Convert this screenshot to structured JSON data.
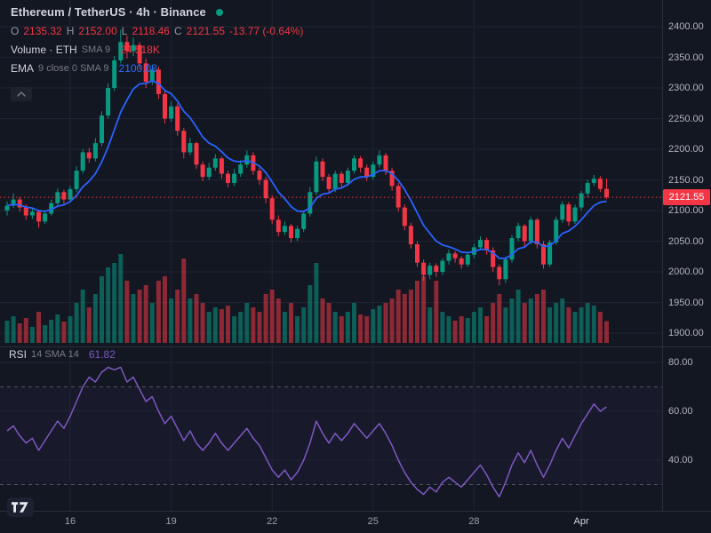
{
  "title": {
    "text": "Ethereum / TetherUS · 4h · Binance"
  },
  "ohlc": {
    "o_label": "O",
    "o": "2135.32",
    "h_label": "H",
    "h": "2152.00",
    "l_label": "L",
    "l": "2118.46",
    "c_label": "C",
    "c": "2121.55",
    "change": "-13.77 (-0.64%)"
  },
  "volume_legend": {
    "name": "Volume · ETH",
    "params": "SMA 9",
    "value": "24.518K"
  },
  "ema_legend": {
    "name": "EMA",
    "params": "9 close 0 SMA 9",
    "value": "2100.08"
  },
  "rsi_legend": {
    "name": "RSI",
    "params": "14 SMA 14",
    "value": "61.82"
  },
  "colors": {
    "background": "#131722",
    "grid": "#1e2433",
    "up": "#089981",
    "down": "#f23645",
    "up_volume": "rgba(8,153,129,0.55)",
    "down_volume": "rgba(242,54,69,0.55)",
    "ema_line": "#2962ff",
    "rsi_line": "#7e57c2",
    "rsi_band_fill": "rgba(126,87,194,0.06)",
    "band_line": "#787b86",
    "axis_text": "#b2b5be",
    "separator": "#2a2e39",
    "last_price_line": "#f23645",
    "badge_bg": "#f23645",
    "status_dot": "#089981"
  },
  "price_axis": {
    "labels": [
      {
        "text": "2400.00",
        "price": 2400
      },
      {
        "text": "2350.00",
        "price": 2350
      },
      {
        "text": "2300.00",
        "price": 2300
      },
      {
        "text": "2250.00",
        "price": 2250
      },
      {
        "text": "2200.00",
        "price": 2200
      },
      {
        "text": "2150.00",
        "price": 2150
      },
      {
        "text": "2100.00",
        "price": 2100
      },
      {
        "text": "2050.00",
        "price": 2050
      },
      {
        "text": "2000.00",
        "price": 2000
      },
      {
        "text": "1950.00",
        "price": 1950
      },
      {
        "text": "1900.00",
        "price": 1900
      }
    ],
    "last_price": 2121.55,
    "last_price_label": "2121.55"
  },
  "rsi_axis": {
    "labels": [
      {
        "text": "80.00",
        "value": 80
      },
      {
        "text": "60.00",
        "value": 60
      },
      {
        "text": "40.00",
        "value": 40
      }
    ],
    "upper_band": 70,
    "lower_band": 30
  },
  "time_axis": {
    "labels": [
      {
        "text": "16",
        "i": 10,
        "bright": false
      },
      {
        "text": "19",
        "i": 26,
        "bright": false
      },
      {
        "text": "22",
        "i": 42,
        "bright": false
      },
      {
        "text": "25",
        "i": 58,
        "bright": false
      },
      {
        "text": "28",
        "i": 74,
        "bright": false
      },
      {
        "text": "Apr",
        "i": 91,
        "bright": true
      }
    ]
  },
  "chart_data": [
    {
      "type": "candlestick",
      "title": "Ethereum / TetherUS",
      "interval": "4h",
      "exchange": "Binance",
      "ylim": [
        1890,
        2410
      ],
      "columns": [
        "open",
        "high",
        "low",
        "close",
        "volume_k"
      ],
      "ema_period": 9,
      "last_price": 2121.55,
      "ohlcv": [
        [
          2100,
          2115,
          2092,
          2108,
          25
        ],
        [
          2108,
          2128,
          2104,
          2118,
          30
        ],
        [
          2118,
          2122,
          2098,
          2105,
          22
        ],
        [
          2105,
          2110,
          2085,
          2092,
          28
        ],
        [
          2092,
          2104,
          2086,
          2098,
          18
        ],
        [
          2098,
          2100,
          2072,
          2082,
          35
        ],
        [
          2082,
          2098,
          2078,
          2095,
          20
        ],
        [
          2095,
          2118,
          2092,
          2112,
          26
        ],
        [
          2112,
          2136,
          2108,
          2130,
          32
        ],
        [
          2130,
          2134,
          2110,
          2118,
          24
        ],
        [
          2118,
          2140,
          2114,
          2135,
          30
        ],
        [
          2135,
          2172,
          2130,
          2165,
          45
        ],
        [
          2165,
          2200,
          2160,
          2195,
          60
        ],
        [
          2195,
          2202,
          2178,
          2185,
          40
        ],
        [
          2185,
          2218,
          2180,
          2210,
          55
        ],
        [
          2210,
          2262,
          2205,
          2255,
          75
        ],
        [
          2255,
          2308,
          2250,
          2300,
          85
        ],
        [
          2300,
          2352,
          2295,
          2345,
          90
        ],
        [
          2345,
          2395,
          2340,
          2375,
          100
        ],
        [
          2375,
          2385,
          2348,
          2360,
          70
        ],
        [
          2360,
          2382,
          2352,
          2370,
          55
        ],
        [
          2370,
          2375,
          2330,
          2340,
          60
        ],
        [
          2340,
          2348,
          2300,
          2310,
          65
        ],
        [
          2310,
          2338,
          2305,
          2330,
          45
        ],
        [
          2330,
          2335,
          2282,
          2290,
          70
        ],
        [
          2290,
          2295,
          2242,
          2250,
          75
        ],
        [
          2250,
          2278,
          2245,
          2270,
          50
        ],
        [
          2270,
          2275,
          2222,
          2230,
          60
        ],
        [
          2230,
          2235,
          2185,
          2195,
          95
        ],
        [
          2195,
          2218,
          2190,
          2210,
          50
        ],
        [
          2210,
          2212,
          2168,
          2175,
          55
        ],
        [
          2175,
          2180,
          2148,
          2155,
          45
        ],
        [
          2155,
          2178,
          2150,
          2170,
          35
        ],
        [
          2170,
          2192,
          2165,
          2185,
          40
        ],
        [
          2185,
          2188,
          2152,
          2160,
          38
        ],
        [
          2160,
          2165,
          2138,
          2145,
          42
        ],
        [
          2145,
          2168,
          2140,
          2160,
          30
        ],
        [
          2160,
          2182,
          2155,
          2175,
          35
        ],
        [
          2175,
          2198,
          2170,
          2190,
          45
        ],
        [
          2190,
          2195,
          2158,
          2165,
          40
        ],
        [
          2165,
          2170,
          2142,
          2150,
          35
        ],
        [
          2150,
          2155,
          2112,
          2120,
          55
        ],
        [
          2120,
          2125,
          2078,
          2085,
          60
        ],
        [
          2085,
          2092,
          2058,
          2065,
          50
        ],
        [
          2065,
          2082,
          2060,
          2075,
          35
        ],
        [
          2075,
          2078,
          2048,
          2055,
          45
        ],
        [
          2055,
          2075,
          2050,
          2070,
          30
        ],
        [
          2070,
          2100,
          2065,
          2095,
          40
        ],
        [
          2095,
          2138,
          2090,
          2130,
          65
        ],
        [
          2130,
          2188,
          2125,
          2180,
          90
        ],
        [
          2180,
          2185,
          2148,
          2155,
          50
        ],
        [
          2155,
          2160,
          2128,
          2135,
          45
        ],
        [
          2135,
          2165,
          2130,
          2160,
          35
        ],
        [
          2160,
          2164,
          2138,
          2145,
          30
        ],
        [
          2145,
          2170,
          2140,
          2165,
          35
        ],
        [
          2165,
          2190,
          2160,
          2185,
          45
        ],
        [
          2185,
          2189,
          2162,
          2170,
          32
        ],
        [
          2170,
          2175,
          2148,
          2155,
          30
        ],
        [
          2155,
          2180,
          2150,
          2175,
          38
        ],
        [
          2175,
          2198,
          2170,
          2190,
          42
        ],
        [
          2190,
          2194,
          2158,
          2165,
          45
        ],
        [
          2165,
          2170,
          2132,
          2140,
          50
        ],
        [
          2140,
          2145,
          2098,
          2105,
          60
        ],
        [
          2105,
          2110,
          2068,
          2075,
          55
        ],
        [
          2075,
          2080,
          2038,
          2045,
          60
        ],
        [
          2045,
          2050,
          2008,
          2015,
          70
        ],
        [
          2015,
          2020,
          1985,
          1995,
          75
        ],
        [
          1995,
          2015,
          1988,
          2010,
          40
        ],
        [
          2010,
          2014,
          1992,
          2000,
          70
        ],
        [
          2000,
          2022,
          1995,
          2018,
          35
        ],
        [
          2018,
          2036,
          2012,
          2030,
          30
        ],
        [
          2030,
          2034,
          2015,
          2022,
          25
        ],
        [
          2022,
          2026,
          2005,
          2012,
          30
        ],
        [
          2012,
          2032,
          2008,
          2028,
          28
        ],
        [
          2028,
          2046,
          2022,
          2040,
          35
        ],
        [
          2040,
          2058,
          2035,
          2052,
          40
        ],
        [
          2052,
          2056,
          2028,
          2035,
          30
        ],
        [
          2035,
          2040,
          2000,
          2008,
          45
        ],
        [
          2008,
          2012,
          1978,
          1988,
          55
        ],
        [
          1988,
          2025,
          1982,
          2020,
          40
        ],
        [
          2020,
          2060,
          2015,
          2055,
          50
        ],
        [
          2055,
          2080,
          2050,
          2075,
          60
        ],
        [
          2075,
          2078,
          2042,
          2050,
          45
        ],
        [
          2050,
          2090,
          2045,
          2085,
          50
        ],
        [
          2085,
          2088,
          2038,
          2045,
          55
        ],
        [
          2045,
          2050,
          2005,
          2012,
          60
        ],
        [
          2012,
          2052,
          2008,
          2048,
          40
        ],
        [
          2048,
          2090,
          2044,
          2085,
          45
        ],
        [
          2085,
          2115,
          2080,
          2110,
          50
        ],
        [
          2110,
          2114,
          2075,
          2082,
          40
        ],
        [
          2082,
          2110,
          2078,
          2105,
          35
        ],
        [
          2105,
          2132,
          2100,
          2128,
          40
        ],
        [
          2128,
          2150,
          2122,
          2145,
          45
        ],
        [
          2145,
          2158,
          2140,
          2152,
          42
        ],
        [
          2152,
          2156,
          2130,
          2135.32,
          35
        ],
        [
          2135.32,
          2152,
          2118.46,
          2121.55,
          24.518
        ]
      ]
    },
    {
      "type": "line",
      "name": "RSI 14",
      "ylim": [
        20,
        88
      ],
      "bands": {
        "upper": 70,
        "lower": 30
      },
      "last_value": 61.82,
      "values": [
        52,
        54,
        50,
        47,
        49,
        44,
        48,
        52,
        56,
        53,
        58,
        64,
        70,
        74,
        72,
        76,
        78,
        77,
        78,
        72,
        74,
        69,
        64,
        66,
        60,
        55,
        58,
        53,
        48,
        52,
        47,
        44,
        47,
        51,
        47,
        44,
        47,
        50,
        53,
        49,
        46,
        41,
        36,
        33,
        36,
        32,
        35,
        40,
        47,
        56,
        51,
        47,
        51,
        48,
        51,
        55,
        52,
        49,
        52,
        55,
        51,
        46,
        40,
        35,
        31,
        28,
        26,
        29,
        27,
        31,
        33,
        31,
        29,
        32,
        35,
        38,
        34,
        29,
        25,
        31,
        38,
        43,
        39,
        44,
        38,
        33,
        38,
        44,
        49,
        45,
        50,
        55,
        59,
        63,
        60,
        61.82
      ]
    }
  ]
}
